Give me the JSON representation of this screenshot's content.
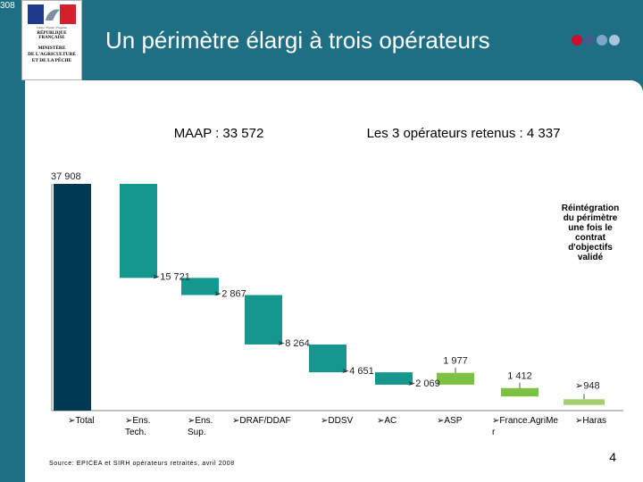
{
  "slide": {
    "corner_label": "308",
    "title": "Un périmètre élargi à trois opérateurs",
    "page_number": "4",
    "logo": {
      "motto": "Liberté • Égalité • Fraternité",
      "republic": "RÉPUBLIQUE FRANÇAISE",
      "ministry_lines": [
        "MINISTÈRE",
        "DE L'AGRICULTURE",
        "ET DE LA PÊCHE"
      ]
    },
    "decor_dots": [
      "#c8102e",
      "#3d5f8c",
      "#7fa6c8",
      "#a9c4db"
    ]
  },
  "chart_data": {
    "type": "bar",
    "subtype": "waterfall",
    "title": "",
    "header_left": "MAAP : 33 572",
    "header_right": "Les 3 opérateurs retenus : 4 337",
    "categories": [
      "Total",
      "Ens. Tech.",
      "Ens. Sup.",
      "DRAF/DDAF",
      "DDSV",
      "AC",
      "ASP",
      "France.AgriMer",
      "Haras"
    ],
    "category_labels": [
      [
        "➢Total"
      ],
      [
        "➢Ens.",
        "Tech."
      ],
      [
        "➢Ens.",
        "Sup."
      ],
      [
        "➢DRAF/DDAF"
      ],
      [
        "➢DDSV"
      ],
      [
        "➢AC"
      ],
      [
        "➢ASP"
      ],
      [
        "➢France.AgriMe",
        "r"
      ],
      [
        "➢Haras"
      ]
    ],
    "values": [
      37908,
      15721,
      2867,
      8264,
      4651,
      2069,
      1977,
      1412,
      948
    ],
    "value_labels": [
      "37 908",
      "➢15 721",
      "➢2 867",
      "➢8 264",
      "➢4 651",
      "➢2 069",
      "1 977",
      "1 412",
      "➢948"
    ],
    "colors": {
      "total": "#003a52",
      "reduction": "#15968f",
      "operator": "#7cc142",
      "haras": "#a4cf6e"
    },
    "ylim": [
      0,
      37908
    ],
    "annotation": "Réintégration du périmètre une fois le contrat d'objectifs validé",
    "source": "Source: EPICEA et SIRH opérateurs retraités, avril 2008"
  }
}
